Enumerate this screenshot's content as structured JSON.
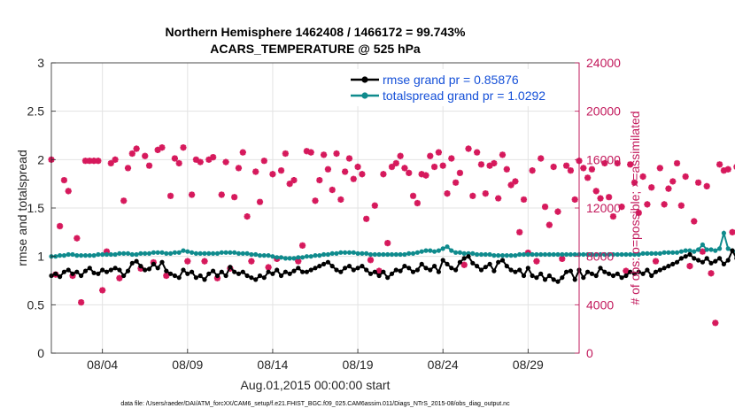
{
  "chart_data": {
    "type": "line",
    "title": [
      "Northern Hemisphere 1462408 / 1466172 = 99.743%",
      "ACARS_TEMPERATURE @ 525 hPa"
    ],
    "xlabel": "Aug.01,2015 00:00:00 start",
    "ylabel_left": "rmse and totalspread",
    "ylabel_right": "# of obs: o=possible; ×=assimilated",
    "footnote": "data file: /Users/raeder/DAI/ATM_forcXX/CAM6_setup/f.e21.FHIST_BGC.f09_025.CAM6assim.011/Diags_NTrS_2015-08/obs_diag_output.nc",
    "xlim": [
      0.5,
      31.5
    ],
    "ylim_left": [
      0,
      3
    ],
    "ylim_right": [
      0,
      24000
    ],
    "x_ticks": [
      3.5,
      8.5,
      13.5,
      18.5,
      23.5,
      28.5
    ],
    "x_tick_labels": [
      "08/04",
      "08/09",
      "08/14",
      "08/19",
      "08/24",
      "08/29"
    ],
    "y_left_ticks": [
      0,
      0.5,
      1,
      1.5,
      2,
      2.5,
      3
    ],
    "y_left_tick_labels": [
      "0",
      "0.5",
      "1",
      "1.5",
      "2",
      "2.5",
      "3"
    ],
    "y_right_ticks": [
      0,
      4000,
      8000,
      12000,
      16000,
      20000,
      24000
    ],
    "y_right_tick_labels": [
      "0",
      "4000",
      "8000",
      "12000",
      "16000",
      "20000",
      "24000"
    ],
    "grid": true,
    "legend_position": "top-right",
    "colors": {
      "rmse": "#000000",
      "spread": "#0f8b8d",
      "obs": "#d6195c",
      "right_axis": "#c2185b"
    },
    "series": [
      {
        "name": "rmse grand pr = 0.85876",
        "axis": "left",
        "x_start": 0.5,
        "x_step": 0.25,
        "values": [
          0.8,
          0.82,
          0.79,
          0.84,
          0.86,
          0.82,
          0.84,
          0.8,
          0.85,
          0.88,
          0.83,
          0.82,
          0.86,
          0.84,
          0.86,
          0.88,
          0.86,
          0.8,
          0.85,
          0.93,
          0.95,
          0.9,
          0.86,
          0.87,
          0.92,
          0.88,
          0.94,
          0.85,
          0.82,
          0.8,
          0.78,
          0.86,
          0.82,
          0.84,
          0.78,
          0.8,
          0.76,
          0.82,
          0.85,
          0.8,
          0.84,
          0.8,
          0.89,
          0.84,
          0.82,
          0.84,
          0.8,
          0.78,
          0.76,
          0.8,
          0.78,
          0.84,
          0.82,
          0.86,
          0.8,
          0.84,
          0.82,
          0.85,
          0.88,
          0.84,
          0.84,
          0.86,
          0.88,
          0.9,
          0.92,
          0.94,
          0.9,
          0.86,
          0.84,
          0.88,
          0.9,
          0.86,
          0.88,
          0.9,
          0.86,
          0.82,
          0.84,
          0.8,
          0.84,
          0.78,
          0.82,
          0.86,
          0.85,
          0.9,
          0.88,
          0.84,
          0.86,
          0.92,
          0.88,
          0.86,
          0.9,
          0.84,
          0.96,
          0.92,
          0.88,
          0.86,
          0.94,
          0.98,
          1.0,
          0.93,
          0.9,
          0.86,
          0.89,
          0.92,
          0.85,
          0.94,
          0.96,
          0.9,
          0.86,
          0.84,
          0.86,
          0.8,
          0.88,
          0.8,
          0.78,
          0.82,
          0.76,
          0.8,
          0.76,
          0.74,
          0.78,
          0.84,
          0.85,
          0.76,
          0.86,
          0.78,
          0.84,
          0.82,
          0.8,
          0.88,
          0.84,
          0.82,
          0.8,
          0.82,
          0.78,
          0.8,
          0.84,
          0.82,
          0.84,
          0.82,
          0.86,
          0.8,
          0.84,
          0.86,
          0.88,
          0.9,
          0.92,
          0.94,
          0.98,
          1.0,
          1.02,
          0.98,
          0.96,
          0.94,
          0.98,
          0.93,
          0.95,
          0.98,
          0.92,
          0.96,
          1.06,
          0.98,
          0.93,
          0.88,
          0.8
        ]
      },
      {
        "name": "totalspread grand pr = 1.0292",
        "axis": "left",
        "x_start": 0.5,
        "x_step": 0.25,
        "values": [
          1.0,
          1.0,
          1.01,
          1.01,
          1.02,
          1.02,
          1.01,
          1.01,
          1.01,
          1.01,
          1.01,
          1.02,
          1.02,
          1.02,
          1.02,
          1.02,
          1.03,
          1.03,
          1.03,
          1.02,
          1.02,
          1.03,
          1.03,
          1.03,
          1.04,
          1.04,
          1.04,
          1.03,
          1.03,
          1.04,
          1.04,
          1.06,
          1.05,
          1.04,
          1.03,
          1.03,
          1.03,
          1.03,
          1.03,
          1.03,
          1.04,
          1.04,
          1.04,
          1.04,
          1.03,
          1.03,
          1.03,
          1.02,
          1.02,
          1.01,
          1.01,
          1.01,
          1.0,
          0.99,
          0.99,
          0.98,
          0.98,
          0.98,
          0.99,
          0.99,
          1.0,
          1.0,
          1.01,
          1.01,
          1.02,
          1.02,
          1.03,
          1.03,
          1.04,
          1.04,
          1.04,
          1.04,
          1.03,
          1.03,
          1.03,
          1.02,
          1.02,
          1.02,
          1.02,
          1.02,
          1.02,
          1.02,
          1.02,
          1.02,
          1.03,
          1.03,
          1.04,
          1.05,
          1.06,
          1.06,
          1.05,
          1.06,
          1.08,
          1.1,
          1.06,
          1.04,
          1.04,
          1.03,
          1.03,
          1.03,
          1.02,
          1.02,
          1.02,
          1.02,
          1.01,
          1.01,
          1.01,
          1.01,
          1.01,
          1.01,
          1.02,
          1.02,
          1.02,
          1.02,
          1.02,
          1.02,
          1.02,
          1.02,
          1.02,
          1.02,
          1.02,
          1.02,
          1.02,
          1.02,
          1.02,
          1.02,
          1.02,
          1.02,
          1.02,
          1.02,
          1.02,
          1.02,
          1.02,
          1.02,
          1.02,
          1.02,
          1.02,
          1.02,
          1.02,
          1.03,
          1.03,
          1.03,
          1.03,
          1.03,
          1.04,
          1.04,
          1.04,
          1.04,
          1.05,
          1.06,
          1.06,
          1.05,
          1.07,
          1.12,
          1.07,
          1.07,
          1.06,
          1.08,
          1.24,
          1.08,
          1.06,
          1.05,
          1.04,
          1.04,
          1.04,
          1.08,
          1.04,
          1.03
        ]
      },
      {
        "name": "obs possible / assimilated",
        "axis": "right",
        "marker": "asterisk",
        "x_start": 0.5,
        "x_step": 0.25,
        "values": [
          16000,
          6500,
          10500,
          14300,
          13400,
          6400,
          9500,
          4200,
          15900,
          15900,
          15900,
          15900,
          5200,
          8400,
          15700,
          16000,
          6200,
          12600,
          15300,
          16500,
          16900,
          7000,
          16300,
          15500,
          7500,
          16800,
          17000,
          6400,
          13000,
          16100,
          15700,
          17000,
          7600,
          13100,
          16000,
          15800,
          7600,
          16000,
          16200,
          6200,
          13100,
          15800,
          7000,
          12900,
          15300,
          16600,
          11300,
          7600,
          15000,
          12500,
          15900,
          7100,
          14800,
          7800,
          15100,
          16500,
          14000,
          14300,
          7600,
          8900,
          16700,
          16600,
          12600,
          14300,
          16400,
          15200,
          13500,
          16500,
          12700,
          15000,
          16100,
          14400,
          15400,
          14800,
          11100,
          7700,
          12200,
          6800,
          14800,
          9100,
          15400,
          15700,
          16300,
          15300,
          14900,
          13000,
          12400,
          14800,
          14700,
          16300,
          15400,
          16600,
          15500,
          13200,
          16100,
          14100,
          14900,
          7300,
          16900,
          13000,
          16600,
          15600,
          13200,
          15500,
          15700,
          12800,
          16400,
          15200,
          13900,
          14200,
          10000,
          12700,
          8300,
          15100,
          7600,
          16100,
          12100,
          10600,
          15400,
          11700,
          7800,
          15500,
          15100,
          12700,
          15900,
          15300,
          14500,
          15200,
          13400,
          12800,
          15700,
          12900,
          11300,
          15700,
          12100,
          6800,
          15600,
          14100,
          11600,
          14600,
          12300,
          13700,
          7600,
          15300,
          12300,
          13600,
          14200,
          15700,
          12200,
          14600,
          7200,
          10900,
          14100,
          8400,
          13800,
          6600,
          2500,
          15600,
          15100,
          15200,
          10000,
          15400,
          9300,
          15100,
          3600,
          15400,
          0
        ]
      }
    ]
  }
}
